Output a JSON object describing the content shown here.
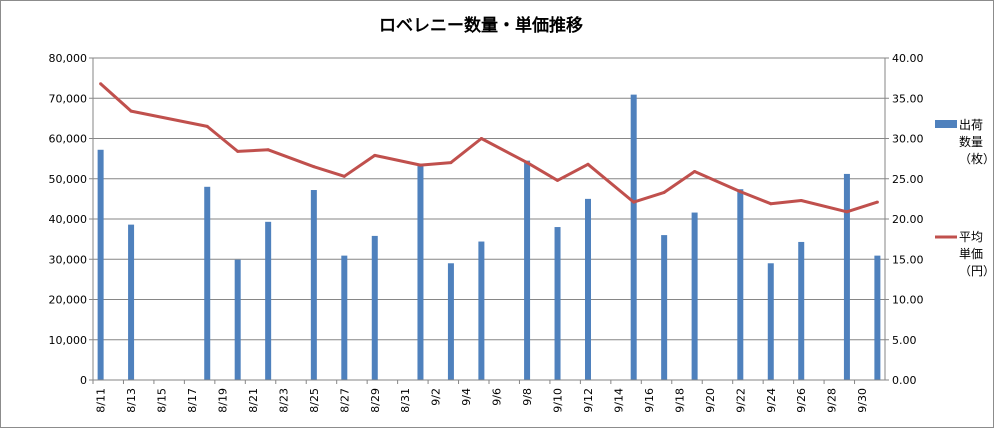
{
  "chart_data": {
    "type": "bar",
    "title": "ロベレニー数量・単価推移",
    "colors": {
      "bar": "#4f81bd",
      "line": "#c0504d",
      "grid": "#868686"
    },
    "y_left": {
      "min": 0,
      "max": 80000,
      "step": 10000,
      "tick_labels": [
        "0",
        "10,000",
        "20,000",
        "30,000",
        "40,000",
        "50,000",
        "60,000",
        "70,000",
        "80,000"
      ]
    },
    "y_right": {
      "min": 0,
      "max": 40,
      "step": 5,
      "tick_labels": [
        "0.00",
        "5.00",
        "10.00",
        "15.00",
        "20.00",
        "25.00",
        "30.00",
        "35.00",
        "40.00"
      ]
    },
    "x_tick_labels": [
      "8/11",
      "8/13",
      "8/15",
      "8/17",
      "8/19",
      "8/21",
      "8/23",
      "8/25",
      "8/27",
      "8/29",
      "8/31",
      "9/2",
      "9/4",
      "9/6",
      "9/8",
      "9/10",
      "9/12",
      "9/14",
      "9/16",
      "9/18",
      "9/20",
      "9/22",
      "9/24",
      "9/26",
      "9/28",
      "9/30"
    ],
    "dates": [
      "8/11",
      "8/12",
      "8/13",
      "8/14",
      "8/15",
      "8/16",
      "8/17",
      "8/18",
      "8/19",
      "8/20",
      "8/21",
      "8/22",
      "8/23",
      "8/24",
      "8/25",
      "8/26",
      "8/27",
      "8/28",
      "8/29",
      "8/30",
      "8/31",
      "9/1",
      "9/2",
      "9/3",
      "9/4",
      "9/5",
      "9/6",
      "9/7",
      "9/8",
      "9/9",
      "9/10",
      "9/11",
      "9/12",
      "9/13",
      "9/14",
      "9/15",
      "9/16",
      "9/17",
      "9/18",
      "9/19",
      "9/20",
      "9/21",
      "9/22",
      "9/23",
      "9/24",
      "9/25",
      "9/26",
      "9/27",
      "9/28",
      "9/29",
      "9/30",
      "10/1"
    ],
    "series": [
      {
        "name": "出荷数量（枚）",
        "legend_lines": [
          "出荷",
          "数量",
          "（枚）"
        ],
        "axis": "left",
        "kind": "bar",
        "points": [
          {
            "x": "8/11",
            "y": 57200
          },
          {
            "x": "8/13",
            "y": 38600
          },
          {
            "x": "8/18",
            "y": 48000
          },
          {
            "x": "8/20",
            "y": 29900
          },
          {
            "x": "8/22",
            "y": 39300
          },
          {
            "x": "8/25",
            "y": 47200
          },
          {
            "x": "8/27",
            "y": 30900
          },
          {
            "x": "8/29",
            "y": 35800
          },
          {
            "x": "9/1",
            "y": 53300
          },
          {
            "x": "9/3",
            "y": 29000
          },
          {
            "x": "9/5",
            "y": 34400
          },
          {
            "x": "9/8",
            "y": 54500
          },
          {
            "x": "9/10",
            "y": 38000
          },
          {
            "x": "9/12",
            "y": 45000
          },
          {
            "x": "9/15",
            "y": 70900
          },
          {
            "x": "9/17",
            "y": 36000
          },
          {
            "x": "9/19",
            "y": 41600
          },
          {
            "x": "9/22",
            "y": 47400
          },
          {
            "x": "9/24",
            "y": 29000
          },
          {
            "x": "9/26",
            "y": 34300
          },
          {
            "x": "9/29",
            "y": 51200
          },
          {
            "x": "10/1",
            "y": 30900
          }
        ]
      },
      {
        "name": "平均単価（円）",
        "legend_lines": [
          "平均",
          "単価",
          "（円）"
        ],
        "axis": "right",
        "kind": "line",
        "points": [
          {
            "x": "8/11",
            "y": 36.8
          },
          {
            "x": "8/13",
            "y": 33.4
          },
          {
            "x": "8/18",
            "y": 31.5
          },
          {
            "x": "8/20",
            "y": 28.4
          },
          {
            "x": "8/22",
            "y": 28.6
          },
          {
            "x": "8/25",
            "y": 26.5
          },
          {
            "x": "8/27",
            "y": 25.3
          },
          {
            "x": "8/29",
            "y": 27.9
          },
          {
            "x": "9/1",
            "y": 26.7
          },
          {
            "x": "9/3",
            "y": 27.0
          },
          {
            "x": "9/5",
            "y": 30.0
          },
          {
            "x": "9/8",
            "y": 27.0
          },
          {
            "x": "9/10",
            "y": 24.8
          },
          {
            "x": "9/12",
            "y": 26.8
          },
          {
            "x": "9/15",
            "y": 22.1
          },
          {
            "x": "9/17",
            "y": 23.3
          },
          {
            "x": "9/19",
            "y": 25.9
          },
          {
            "x": "9/22",
            "y": 23.4
          },
          {
            "x": "9/24",
            "y": 21.9
          },
          {
            "x": "9/26",
            "y": 22.3
          },
          {
            "x": "9/29",
            "y": 20.9
          },
          {
            "x": "10/1",
            "y": 22.1
          }
        ]
      }
    ],
    "legend_position": "right",
    "grid": true
  }
}
